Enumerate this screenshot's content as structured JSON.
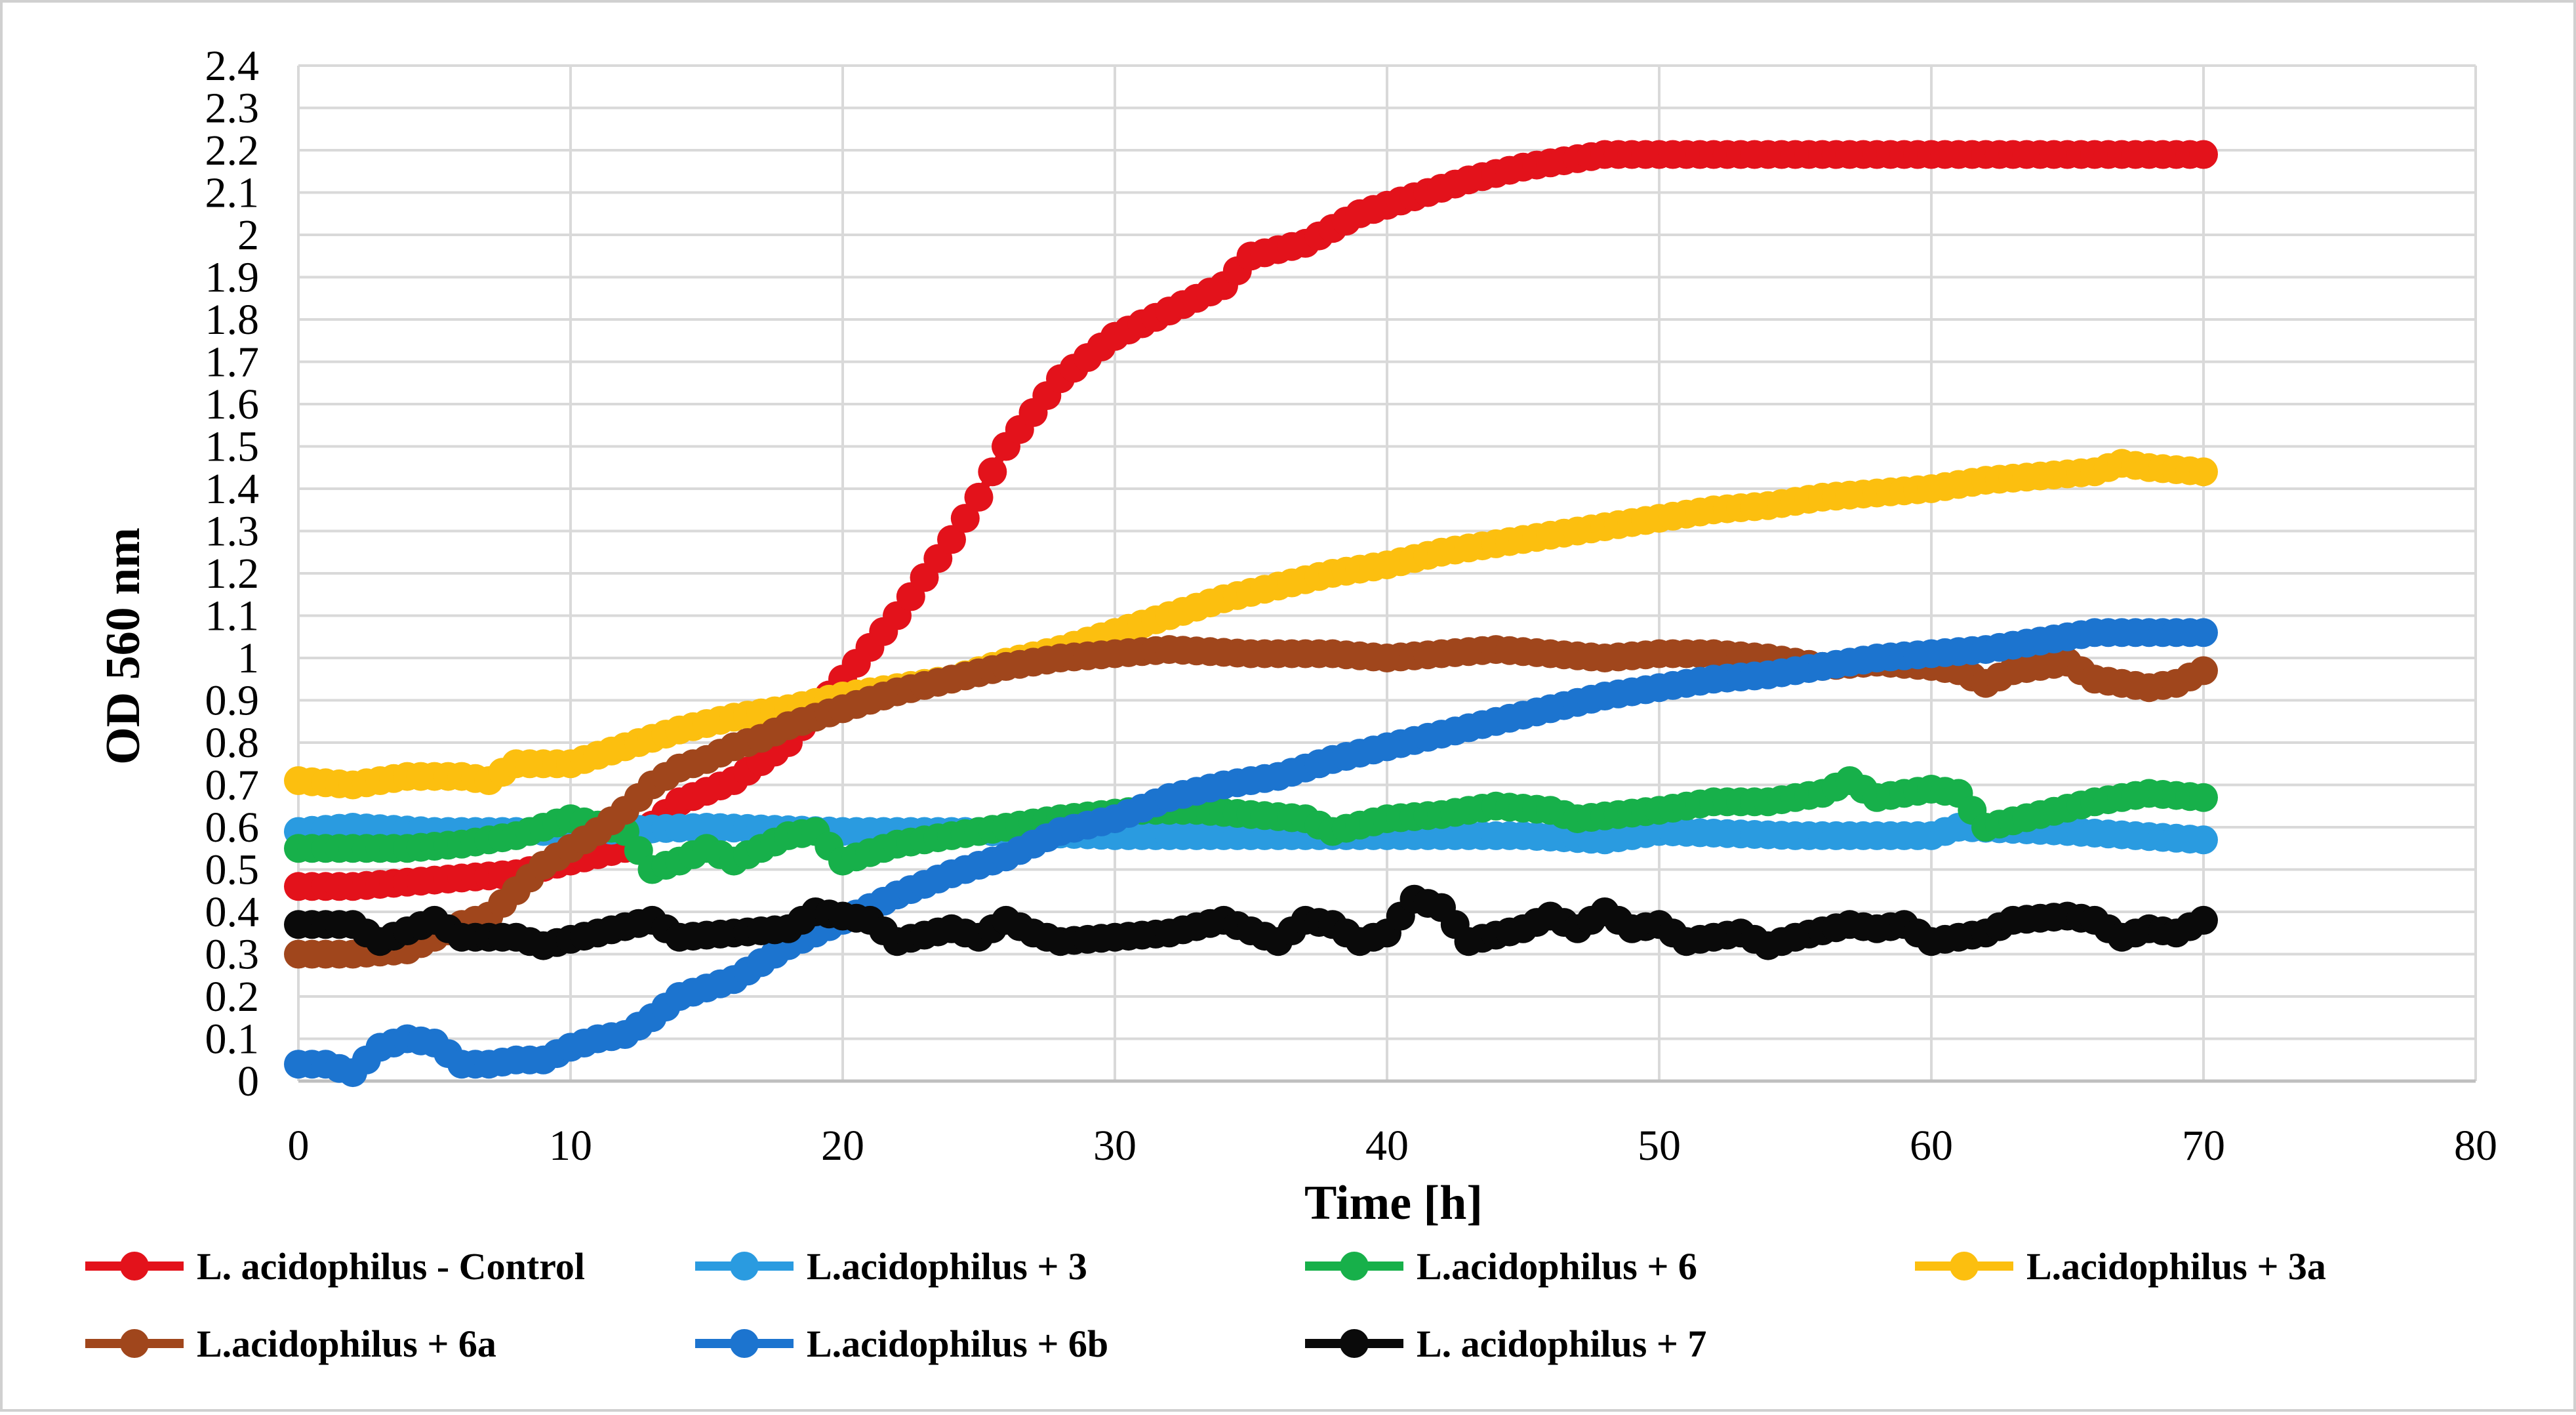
{
  "chart_data": {
    "type": "line",
    "title": "",
    "xlabel": "Time [h]",
    "ylabel": "OD 560 nm",
    "xlim": [
      0,
      80
    ],
    "ylim": [
      0,
      2.4
    ],
    "xticks": [
      "0",
      "10",
      "20",
      "30",
      "40",
      "50",
      "60",
      "70",
      "80"
    ],
    "yticks": [
      "0",
      "0.1",
      "0.2",
      "0.3",
      "0.4",
      "0.5",
      "0.6",
      "0.7",
      "0.8",
      "0.9",
      "1",
      "1.1",
      "1.2",
      "1.3",
      "1.4",
      "1.5",
      "1.6",
      "1.7",
      "1.8",
      "1.9",
      "2",
      "2.1",
      "2.2",
      "2.3",
      "2.4"
    ],
    "grid": true,
    "legend_position": "bottom",
    "sampling_interval_h": 0.5,
    "series": [
      {
        "name": "L. acidophilus - Control",
        "color": "#e3121b",
        "points": [
          [
            0,
            0.46
          ],
          [
            2,
            0.46
          ],
          [
            4,
            0.47
          ],
          [
            6,
            0.48
          ],
          [
            8,
            0.49
          ],
          [
            10,
            0.52
          ],
          [
            12,
            0.55
          ],
          [
            14,
            0.66
          ],
          [
            16,
            0.71
          ],
          [
            18,
            0.8
          ],
          [
            20,
            0.95
          ],
          [
            22,
            1.1
          ],
          [
            24,
            1.28
          ],
          [
            25,
            1.38
          ],
          [
            26,
            1.5
          ],
          [
            27,
            1.58
          ],
          [
            28,
            1.66
          ],
          [
            30,
            1.76
          ],
          [
            32,
            1.82
          ],
          [
            34,
            1.88
          ],
          [
            35,
            1.95
          ],
          [
            37,
            1.98
          ],
          [
            39,
            2.05
          ],
          [
            41,
            2.09
          ],
          [
            43,
            2.13
          ],
          [
            45,
            2.16
          ],
          [
            47,
            2.18
          ],
          [
            48,
            2.19
          ],
          [
            50,
            2.19
          ],
          [
            55,
            2.19
          ],
          [
            60,
            2.19
          ],
          [
            65,
            2.19
          ],
          [
            70,
            2.19
          ]
        ]
      },
      {
        "name": "L.acidophilus + 3",
        "color": "#2a9be0",
        "points": [
          [
            0,
            0.59
          ],
          [
            2,
            0.6
          ],
          [
            5,
            0.59
          ],
          [
            10,
            0.59
          ],
          [
            15,
            0.6
          ],
          [
            20,
            0.59
          ],
          [
            25,
            0.59
          ],
          [
            30,
            0.58
          ],
          [
            35,
            0.58
          ],
          [
            40,
            0.58
          ],
          [
            45,
            0.58
          ],
          [
            48,
            0.57
          ],
          [
            50,
            0.59
          ],
          [
            55,
            0.58
          ],
          [
            60,
            0.58
          ],
          [
            61,
            0.6
          ],
          [
            65,
            0.59
          ],
          [
            70,
            0.57
          ]
        ]
      },
      {
        "name": "L.acidophilus + 6",
        "color": "#17b04a",
        "points": [
          [
            0,
            0.55
          ],
          [
            4,
            0.55
          ],
          [
            6,
            0.56
          ],
          [
            8,
            0.58
          ],
          [
            10,
            0.62
          ],
          [
            12,
            0.59
          ],
          [
            13,
            0.5
          ],
          [
            14,
            0.52
          ],
          [
            15,
            0.55
          ],
          [
            16,
            0.52
          ],
          [
            18,
            0.58
          ],
          [
            19,
            0.59
          ],
          [
            20,
            0.52
          ],
          [
            22,
            0.56
          ],
          [
            25,
            0.59
          ],
          [
            28,
            0.62
          ],
          [
            31,
            0.64
          ],
          [
            33,
            0.64
          ],
          [
            35,
            0.63
          ],
          [
            37,
            0.62
          ],
          [
            38,
            0.59
          ],
          [
            40,
            0.62
          ],
          [
            42,
            0.63
          ],
          [
            44,
            0.65
          ],
          [
            46,
            0.64
          ],
          [
            47,
            0.62
          ],
          [
            50,
            0.64
          ],
          [
            52,
            0.66
          ],
          [
            54,
            0.66
          ],
          [
            56,
            0.68
          ],
          [
            57,
            0.71
          ],
          [
            58,
            0.67
          ],
          [
            60,
            0.69
          ],
          [
            61,
            0.68
          ],
          [
            62,
            0.6
          ],
          [
            64,
            0.63
          ],
          [
            66,
            0.66
          ],
          [
            68,
            0.68
          ],
          [
            70,
            0.67
          ]
        ]
      },
      {
        "name": "L.acidophilus + 3a",
        "color": "#fcbf0f",
        "points": [
          [
            0,
            0.71
          ],
          [
            2,
            0.7
          ],
          [
            4,
            0.72
          ],
          [
            6,
            0.72
          ],
          [
            7,
            0.71
          ],
          [
            8,
            0.75
          ],
          [
            10,
            0.75
          ],
          [
            12,
            0.79
          ],
          [
            14,
            0.83
          ],
          [
            16,
            0.86
          ],
          [
            18,
            0.88
          ],
          [
            20,
            0.91
          ],
          [
            22,
            0.93
          ],
          [
            24,
            0.95
          ],
          [
            26,
            0.99
          ],
          [
            28,
            1.02
          ],
          [
            30,
            1.06
          ],
          [
            32,
            1.1
          ],
          [
            34,
            1.14
          ],
          [
            36,
            1.17
          ],
          [
            38,
            1.2
          ],
          [
            40,
            1.22
          ],
          [
            42,
            1.25
          ],
          [
            44,
            1.27
          ],
          [
            46,
            1.29
          ],
          [
            48,
            1.31
          ],
          [
            50,
            1.33
          ],
          [
            52,
            1.35
          ],
          [
            54,
            1.36
          ],
          [
            56,
            1.38
          ],
          [
            58,
            1.39
          ],
          [
            60,
            1.4
          ],
          [
            62,
            1.42
          ],
          [
            64,
            1.43
          ],
          [
            66,
            1.44
          ],
          [
            67,
            1.46
          ],
          [
            68,
            1.45
          ],
          [
            70,
            1.44
          ]
        ]
      },
      {
        "name": "L.acidophilus + 6a",
        "color": "#a0461c",
        "points": [
          [
            0,
            0.3
          ],
          [
            2,
            0.3
          ],
          [
            4,
            0.31
          ],
          [
            6,
            0.37
          ],
          [
            7,
            0.39
          ],
          [
            8,
            0.45
          ],
          [
            9,
            0.51
          ],
          [
            10,
            0.55
          ],
          [
            11,
            0.59
          ],
          [
            12,
            0.64
          ],
          [
            13,
            0.7
          ],
          [
            14,
            0.74
          ],
          [
            15,
            0.76
          ],
          [
            16,
            0.79
          ],
          [
            17,
            0.81
          ],
          [
            18,
            0.84
          ],
          [
            19,
            0.86
          ],
          [
            20,
            0.88
          ],
          [
            22,
            0.92
          ],
          [
            24,
            0.95
          ],
          [
            26,
            0.98
          ],
          [
            28,
            1.0
          ],
          [
            30,
            1.01
          ],
          [
            32,
            1.02
          ],
          [
            35,
            1.01
          ],
          [
            38,
            1.01
          ],
          [
            40,
            1.0
          ],
          [
            42,
            1.01
          ],
          [
            44,
            1.02
          ],
          [
            46,
            1.01
          ],
          [
            48,
            1.0
          ],
          [
            50,
            1.01
          ],
          [
            52,
            1.01
          ],
          [
            54,
            1.0
          ],
          [
            56,
            0.98
          ],
          [
            58,
            0.99
          ],
          [
            60,
            0.98
          ],
          [
            61,
            0.97
          ],
          [
            62,
            0.94
          ],
          [
            63,
            0.97
          ],
          [
            65,
            0.99
          ],
          [
            66,
            0.95
          ],
          [
            68,
            0.93
          ],
          [
            69,
            0.94
          ],
          [
            70,
            0.97
          ]
        ]
      },
      {
        "name": "L.acidophilus + 6b",
        "color": "#1c74cf",
        "points": [
          [
            0,
            0.04
          ],
          [
            1,
            0.04
          ],
          [
            2,
            0.02
          ],
          [
            3,
            0.08
          ],
          [
            4,
            0.1
          ],
          [
            5,
            0.09
          ],
          [
            6,
            0.04
          ],
          [
            7,
            0.04
          ],
          [
            8,
            0.05
          ],
          [
            9,
            0.05
          ],
          [
            10,
            0.08
          ],
          [
            11,
            0.1
          ],
          [
            12,
            0.11
          ],
          [
            13,
            0.15
          ],
          [
            14,
            0.2
          ],
          [
            15,
            0.22
          ],
          [
            16,
            0.24
          ],
          [
            17,
            0.28
          ],
          [
            18,
            0.32
          ],
          [
            19,
            0.35
          ],
          [
            20,
            0.38
          ],
          [
            22,
            0.44
          ],
          [
            24,
            0.49
          ],
          [
            26,
            0.53
          ],
          [
            28,
            0.59
          ],
          [
            30,
            0.62
          ],
          [
            32,
            0.67
          ],
          [
            34,
            0.7
          ],
          [
            36,
            0.72
          ],
          [
            38,
            0.76
          ],
          [
            40,
            0.79
          ],
          [
            42,
            0.82
          ],
          [
            44,
            0.85
          ],
          [
            46,
            0.88
          ],
          [
            48,
            0.91
          ],
          [
            50,
            0.93
          ],
          [
            52,
            0.95
          ],
          [
            54,
            0.96
          ],
          [
            56,
            0.98
          ],
          [
            58,
            1.0
          ],
          [
            60,
            1.01
          ],
          [
            62,
            1.02
          ],
          [
            64,
            1.04
          ],
          [
            66,
            1.06
          ],
          [
            68,
            1.06
          ],
          [
            70,
            1.06
          ]
        ]
      },
      {
        "name": "L. acidophilus + 7",
        "color": "#0a0a0a",
        "points": [
          [
            0,
            0.37
          ],
          [
            2,
            0.37
          ],
          [
            3,
            0.33
          ],
          [
            5,
            0.38
          ],
          [
            6,
            0.34
          ],
          [
            8,
            0.34
          ],
          [
            9,
            0.32
          ],
          [
            11,
            0.35
          ],
          [
            13,
            0.38
          ],
          [
            14,
            0.34
          ],
          [
            16,
            0.35
          ],
          [
            18,
            0.36
          ],
          [
            19,
            0.4
          ],
          [
            21,
            0.38
          ],
          [
            22,
            0.33
          ],
          [
            24,
            0.36
          ],
          [
            25,
            0.34
          ],
          [
            26,
            0.38
          ],
          [
            27,
            0.35
          ],
          [
            28,
            0.33
          ],
          [
            30,
            0.34
          ],
          [
            32,
            0.35
          ],
          [
            34,
            0.38
          ],
          [
            36,
            0.33
          ],
          [
            37,
            0.38
          ],
          [
            38,
            0.37
          ],
          [
            39,
            0.33
          ],
          [
            40,
            0.35
          ],
          [
            41,
            0.43
          ],
          [
            42,
            0.41
          ],
          [
            43,
            0.33
          ],
          [
            45,
            0.36
          ],
          [
            46,
            0.39
          ],
          [
            47,
            0.36
          ],
          [
            48,
            0.4
          ],
          [
            49,
            0.36
          ],
          [
            50,
            0.37
          ],
          [
            51,
            0.33
          ],
          [
            53,
            0.35
          ],
          [
            54,
            0.32
          ],
          [
            55,
            0.34
          ],
          [
            57,
            0.37
          ],
          [
            58,
            0.36
          ],
          [
            59,
            0.37
          ],
          [
            60,
            0.33
          ],
          [
            62,
            0.35
          ],
          [
            63,
            0.38
          ],
          [
            65,
            0.39
          ],
          [
            66,
            0.38
          ],
          [
            67,
            0.34
          ],
          [
            68,
            0.36
          ],
          [
            69,
            0.35
          ],
          [
            70,
            0.38
          ]
        ]
      }
    ]
  }
}
